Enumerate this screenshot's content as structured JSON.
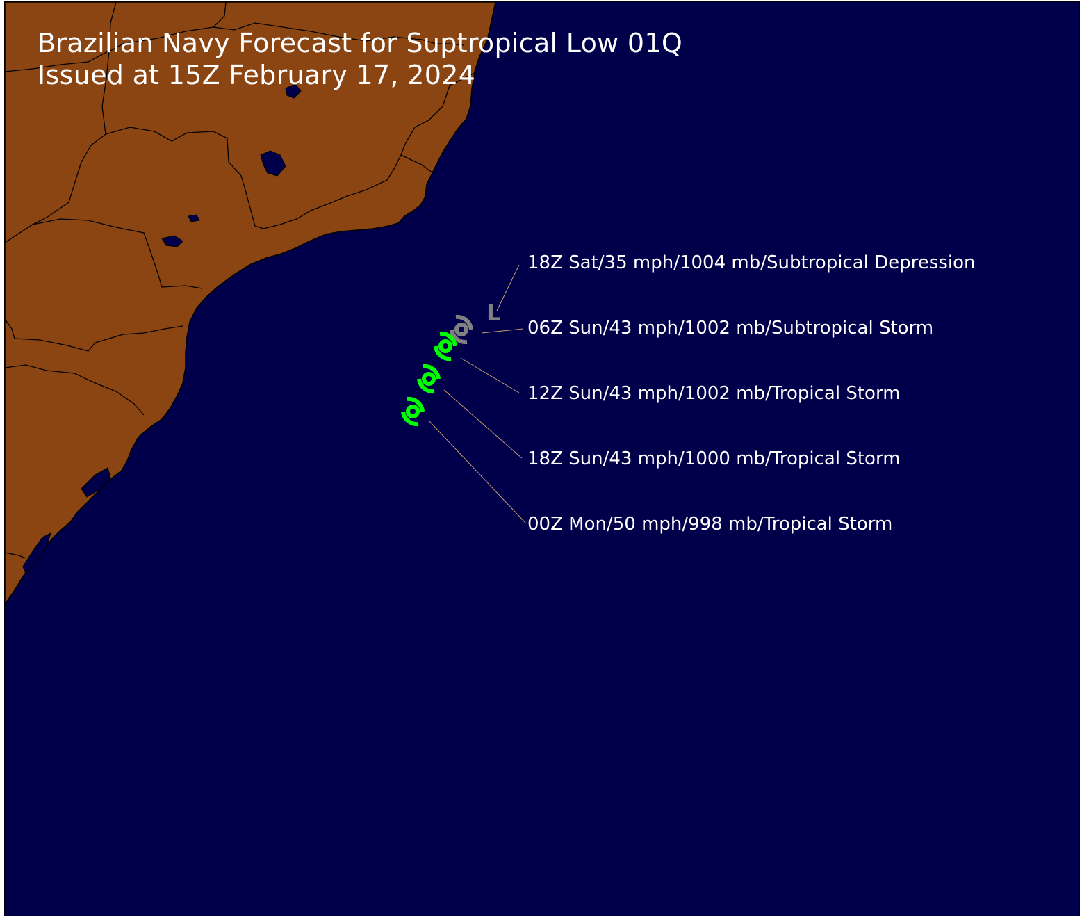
{
  "map": {
    "title_line1": "Brazilian Navy Forecast for Suptropical Low 01Q",
    "title_line2": "Issued at 15Z February 17, 2024",
    "colors": {
      "ocean": "#00004a",
      "land": "#8b4513",
      "border": "#000000",
      "leader_line": "#c8a070",
      "subtropical_marker": "#808080",
      "tropical_marker": "#00ff00",
      "text": "#ffffff"
    },
    "forecast_points": [
      {
        "label": "18Z Sat/35 mph/1004 mb/Subtropical Depression",
        "marker": "L",
        "category": "subtropical-depression"
      },
      {
        "label": "06Z Sun/43 mph/1002 mb/Subtropical Storm",
        "marker": "subtropical-storm-icon",
        "category": "subtropical-storm"
      },
      {
        "label": "12Z Sun/43 mph/1002 mb/Tropical Storm",
        "marker": "tropical-storm-icon",
        "category": "tropical-storm"
      },
      {
        "label": "18Z Sun/43 mph/1000 mb/Tropical Storm",
        "marker": "tropical-storm-icon",
        "category": "tropical-storm"
      },
      {
        "label": "00Z Mon/50 mph/998 mb/Tropical Storm",
        "marker": "tropical-storm-icon",
        "category": "tropical-storm"
      }
    ]
  }
}
